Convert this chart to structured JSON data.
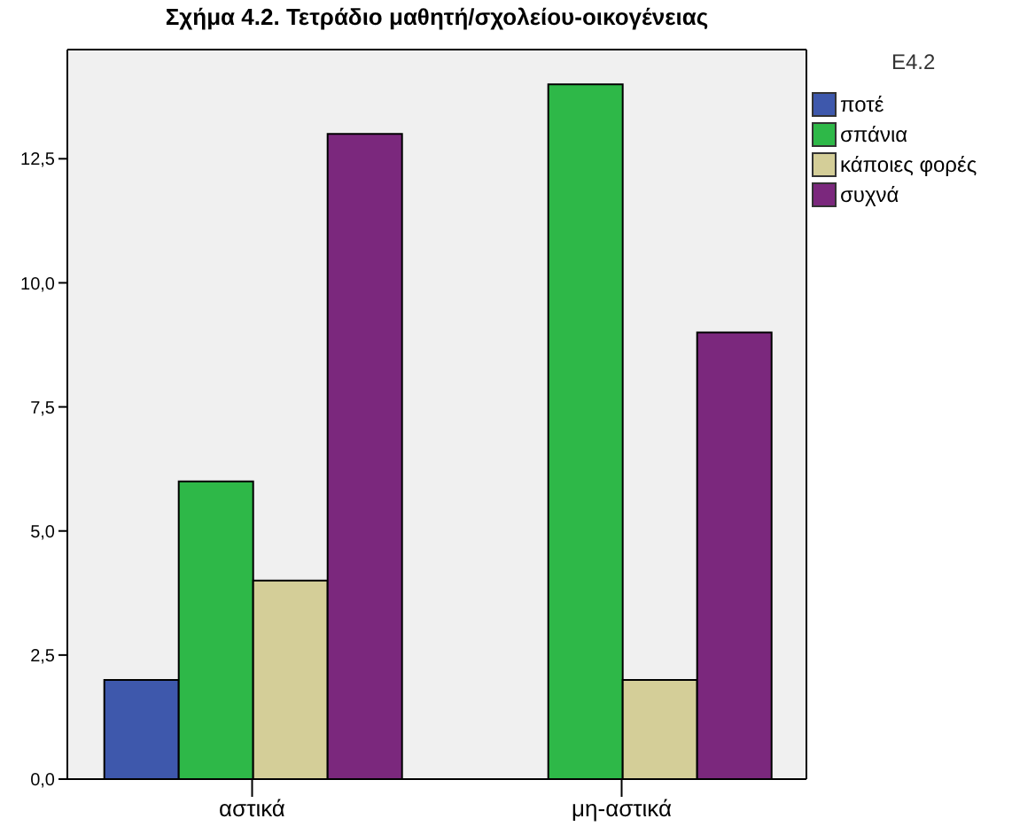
{
  "chart_data": {
    "type": "bar",
    "title": "Σχήμα 4.2. Τετράδιο μαθητή/σχολείου-οικογένειας",
    "categories": [
      "αστικά",
      "μη-αστικά"
    ],
    "series": [
      {
        "name": "ποτέ",
        "color": "#3e58ac",
        "values": [
          2,
          null
        ]
      },
      {
        "name": "σπάνια",
        "color": "#2eb848",
        "values": [
          6,
          14
        ]
      },
      {
        "name": "κάποιες φορές",
        "color": "#d4ce98",
        "values": [
          4,
          2
        ]
      },
      {
        "name": "συχνά",
        "color": "#7b287d",
        "values": [
          13,
          9
        ]
      }
    ],
    "legend_title": "E4.2",
    "ylim": [
      0,
      14.7
    ],
    "yticks": [
      {
        "value": 0,
        "label": "0,0"
      },
      {
        "value": 2.5,
        "label": "2,5"
      },
      {
        "value": 5,
        "label": "5,0"
      },
      {
        "value": 7.5,
        "label": "7,5"
      },
      {
        "value": 10,
        "label": "10,0"
      },
      {
        "value": 12.5,
        "label": "12,5"
      }
    ],
    "legend": "top right"
  }
}
